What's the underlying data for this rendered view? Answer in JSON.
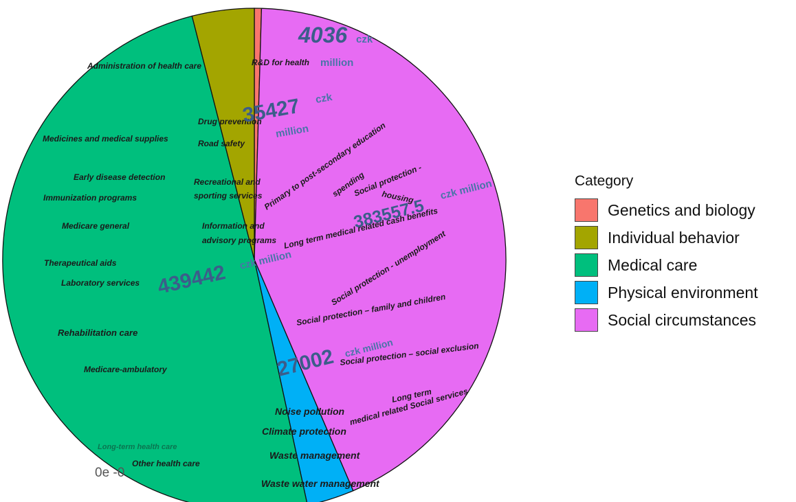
{
  "chart_data": {
    "type": "pie",
    "categories": [
      "Genetics and biology",
      "Individual behavior",
      "Medical care",
      "Physical environment",
      "Social circumstances"
    ],
    "values": [
      4036,
      35427,
      439442,
      27002,
      383557.5
    ],
    "colors": [
      "#f8766d",
      "#a3a500",
      "#00bf7d",
      "#00b0f6",
      "#e76bf3"
    ],
    "value_labels": {
      "genetics": {
        "number": "4036",
        "unit_a": "czk",
        "unit_b": "million"
      },
      "behavior": {
        "number": "35427",
        "unit_a": "czk",
        "unit_b": "million"
      },
      "medical": {
        "number": "439442",
        "unit": "czk million"
      },
      "physical": {
        "number": "27002",
        "unit": "czk million"
      },
      "social": {
        "number": "383557.5",
        "unit": "czk million"
      }
    },
    "legend": {
      "title": "Category",
      "placement": "right",
      "entries": [
        "Genetics and biology",
        "Individual behavior",
        "Medical care",
        "Physical environment",
        "Social circumstances"
      ]
    },
    "annotations": {
      "genetics": [
        "R&D for health"
      ],
      "behavior": [
        "Drug prevention",
        "Road safety",
        "Recreational and",
        "sporting services",
        "Information and",
        "advisory programs"
      ],
      "medical": [
        "Administration of health care",
        "Medicines and medical supplies",
        "Early disease detection",
        "Immunization programs",
        "Medicare general",
        "Therapeutical aids",
        "Laboratory services",
        "Rehabilitation care",
        "Medicare-ambulatory",
        "Long-term health care",
        "Other health care"
      ],
      "physical": [
        "Noise pollution",
        "Climate protection",
        "Waste management",
        "Waste water management"
      ],
      "social": [
        "Primary to post-secondary education",
        "spending",
        "Social protection -",
        "housing",
        "Long term medical related cash benefits",
        "Social protection - unemployment",
        "Social protection – family and children",
        "Social protection – social exclusion",
        "Long term",
        "medical related Social services"
      ]
    },
    "axis_artifact": "0e -0"
  }
}
